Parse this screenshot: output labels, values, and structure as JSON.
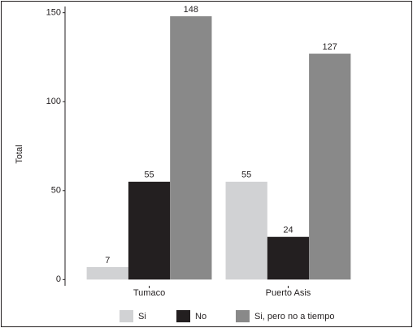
{
  "chart_data": {
    "type": "bar",
    "y_label": "Total",
    "categories": [
      "Tumaco",
      "Puerto Asis"
    ],
    "series": [
      {
        "name": "Si",
        "color": "#d1d2d4",
        "values": [
          7,
          55
        ]
      },
      {
        "name": "No",
        "color": "#231f20",
        "values": [
          55,
          24
        ]
      },
      {
        "name": "Si, pero no a tiempo",
        "color": "#898989",
        "values": [
          148,
          127
        ]
      }
    ],
    "ylim": [
      -3.5,
      153.5
    ],
    "yticks": [
      0,
      50,
      100,
      150
    ],
    "grid": false,
    "legend": "bottom"
  }
}
